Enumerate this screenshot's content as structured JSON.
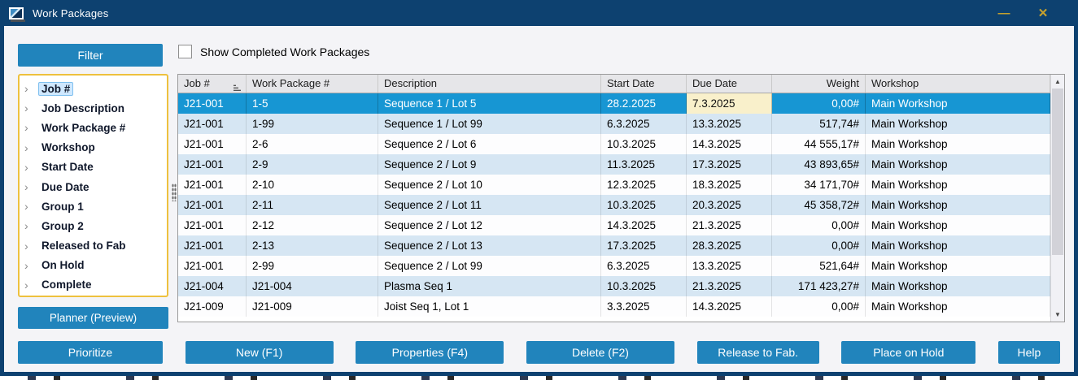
{
  "window": {
    "title": "Work Packages"
  },
  "titlebar": {
    "minimize_glyph": "—",
    "close_glyph": "✕"
  },
  "sidebar": {
    "filter_button_label": "Filter",
    "planner_button_label": "Planner (Preview)",
    "tree_items": [
      {
        "label": "Job #",
        "selected": true
      },
      {
        "label": "Job Description",
        "selected": false
      },
      {
        "label": "Work Package #",
        "selected": false
      },
      {
        "label": "Workshop",
        "selected": false
      },
      {
        "label": "Start Date",
        "selected": false
      },
      {
        "label": "Due Date",
        "selected": false
      },
      {
        "label": "Group 1",
        "selected": false
      },
      {
        "label": "Group 2",
        "selected": false
      },
      {
        "label": "Released to Fab",
        "selected": false
      },
      {
        "label": "On Hold",
        "selected": false
      },
      {
        "label": "Complete",
        "selected": false
      }
    ]
  },
  "filters": {
    "show_completed_label": "Show Completed Work Packages",
    "show_completed_checked": false
  },
  "table": {
    "columns": [
      {
        "label": "Job #",
        "align": "left",
        "sort": "asc"
      },
      {
        "label": "Work Package #",
        "align": "left"
      },
      {
        "label": "Description",
        "align": "left"
      },
      {
        "label": "Start Date",
        "align": "left"
      },
      {
        "label": "Due Date",
        "align": "left"
      },
      {
        "label": "Weight",
        "align": "right"
      },
      {
        "label": "Workshop",
        "align": "left"
      }
    ],
    "selected_row": 0,
    "rows": [
      {
        "job": "J21-001",
        "wp": "1-5",
        "description": "Sequence 1 / Lot 5",
        "start": "28.2.2025",
        "due": "7.3.2025",
        "weight": "0,00#",
        "workshop": "Main Workshop",
        "selected": true,
        "due_highlighted": true
      },
      {
        "job": "J21-001",
        "wp": "1-99",
        "description": "Sequence 1 / Lot 99",
        "start": "6.3.2025",
        "due": "13.3.2025",
        "weight": "517,74#",
        "workshop": "Main Workshop",
        "selected": false,
        "due_highlighted": false
      },
      {
        "job": "J21-001",
        "wp": "2-6",
        "description": "Sequence 2 / Lot 6",
        "start": "10.3.2025",
        "due": "14.3.2025",
        "weight": "44 555,17#",
        "workshop": "Main Workshop",
        "selected": false,
        "due_highlighted": false
      },
      {
        "job": "J21-001",
        "wp": "2-9",
        "description": "Sequence 2 / Lot 9",
        "start": "11.3.2025",
        "due": "17.3.2025",
        "weight": "43 893,65#",
        "workshop": "Main Workshop",
        "selected": false,
        "due_highlighted": false
      },
      {
        "job": "J21-001",
        "wp": "2-10",
        "description": "Sequence 2 / Lot 10",
        "start": "12.3.2025",
        "due": "18.3.2025",
        "weight": "34 171,70#",
        "workshop": "Main Workshop",
        "selected": false,
        "due_highlighted": false
      },
      {
        "job": "J21-001",
        "wp": "2-11",
        "description": "Sequence 2 / Lot 11",
        "start": "10.3.2025",
        "due": "20.3.2025",
        "weight": "45 358,72#",
        "workshop": "Main Workshop",
        "selected": false,
        "due_highlighted": false
      },
      {
        "job": "J21-001",
        "wp": "2-12",
        "description": "Sequence 2 / Lot 12",
        "start": "14.3.2025",
        "due": "21.3.2025",
        "weight": "0,00#",
        "workshop": "Main Workshop",
        "selected": false,
        "due_highlighted": false
      },
      {
        "job": "J21-001",
        "wp": "2-13",
        "description": "Sequence 2 / Lot 13",
        "start": "17.3.2025",
        "due": "28.3.2025",
        "weight": "0,00#",
        "workshop": "Main Workshop",
        "selected": false,
        "due_highlighted": false
      },
      {
        "job": "J21-001",
        "wp": "2-99",
        "description": "Sequence 2 / Lot 99",
        "start": "6.3.2025",
        "due": "13.3.2025",
        "weight": "521,64#",
        "workshop": "Main Workshop",
        "selected": false,
        "due_highlighted": false
      },
      {
        "job": "J21-004",
        "wp": "J21-004",
        "description": "Plasma Seq 1",
        "start": "10.3.2025",
        "due": "21.3.2025",
        "weight": "171 423,27#",
        "workshop": "Main Workshop",
        "selected": false,
        "due_highlighted": false
      },
      {
        "job": "J21-009",
        "wp": "J21-009",
        "description": "Joist Seq 1, Lot 1",
        "start": "3.3.2025",
        "due": "14.3.2025",
        "weight": "0,00#",
        "workshop": "Main Workshop",
        "selected": false,
        "due_highlighted": false
      }
    ]
  },
  "footer": {
    "buttons": [
      "Prioritize",
      "New (F1)",
      "Properties (F4)",
      "Delete (F2)",
      "Release to Fab.",
      "Place on Hold",
      "Help"
    ]
  },
  "colors": {
    "titlebar": "#0d4170",
    "accent_button": "#2184bc",
    "selected_row": "#1796d3",
    "alt_row": "#d6e6f3",
    "due_highlight": "#f9f0cb",
    "tree_border": "#eec13e",
    "titlebar_glyphs": "#c9a22c",
    "tree_selected_bg": "#cfe8ff"
  }
}
